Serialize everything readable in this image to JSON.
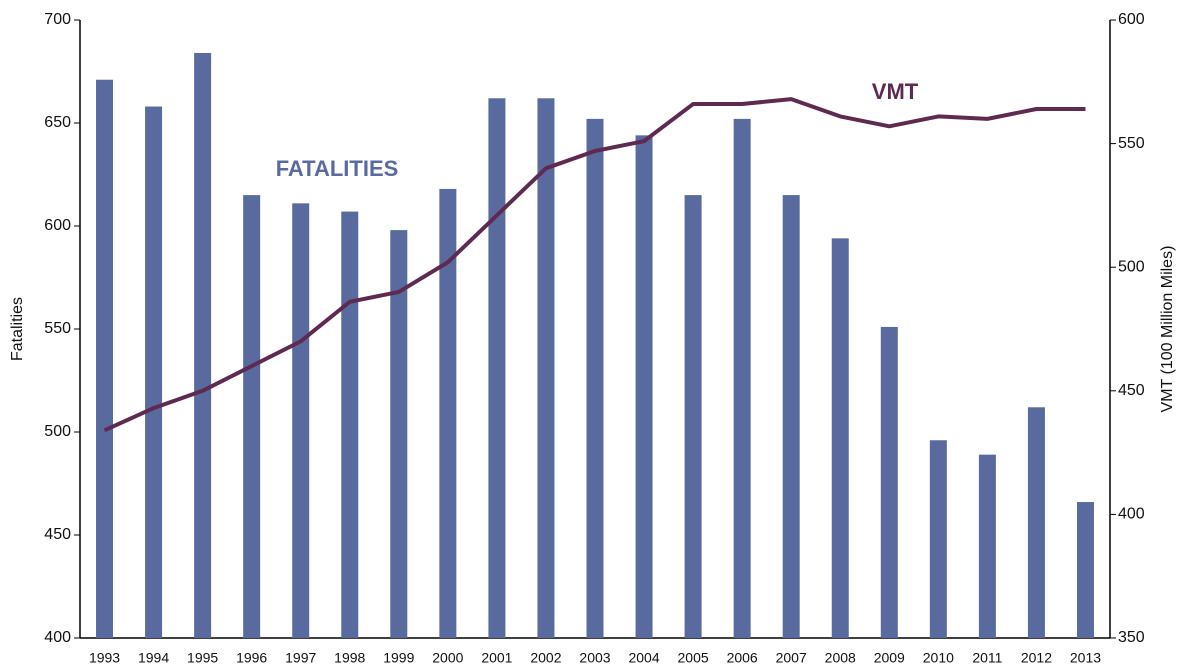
{
  "chart_data": {
    "type": "bar_line",
    "y_label": "Fatalities",
    "y2_label": "VMT (100 Million Miles)",
    "annotations": [
      "FATALITIES",
      "VMT"
    ],
    "categories": [
      "1993",
      "1994",
      "1995",
      "1996",
      "1997",
      "1998",
      "1999",
      "2000",
      "2001",
      "2002",
      "2003",
      "2004",
      "2005",
      "2006",
      "2007",
      "2008",
      "2009",
      "2010",
      "2011",
      "2012",
      "2013"
    ],
    "series": [
      {
        "name": "Fatalities",
        "type": "bar",
        "color": "#596b9e",
        "values": [
          671,
          658,
          684,
          615,
          611,
          607,
          598,
          618,
          662,
          662,
          652,
          644,
          615,
          652,
          615,
          594,
          551,
          496,
          489,
          512,
          466
        ]
      },
      {
        "name": "VMT",
        "type": "line",
        "axis": "y2",
        "color": "#5e2a52",
        "values": [
          434,
          443,
          450,
          460,
          470,
          486,
          490,
          502,
          521,
          540,
          547,
          551,
          566,
          566,
          568,
          561,
          557,
          561,
          560,
          564,
          564
        ]
      }
    ],
    "ylim": [
      400,
      700
    ],
    "yticks": [
      400,
      450,
      500,
      550,
      600,
      650,
      700
    ],
    "y2lim": [
      350,
      600
    ],
    "y2ticks": [
      350,
      400,
      450,
      500,
      550,
      600
    ]
  }
}
